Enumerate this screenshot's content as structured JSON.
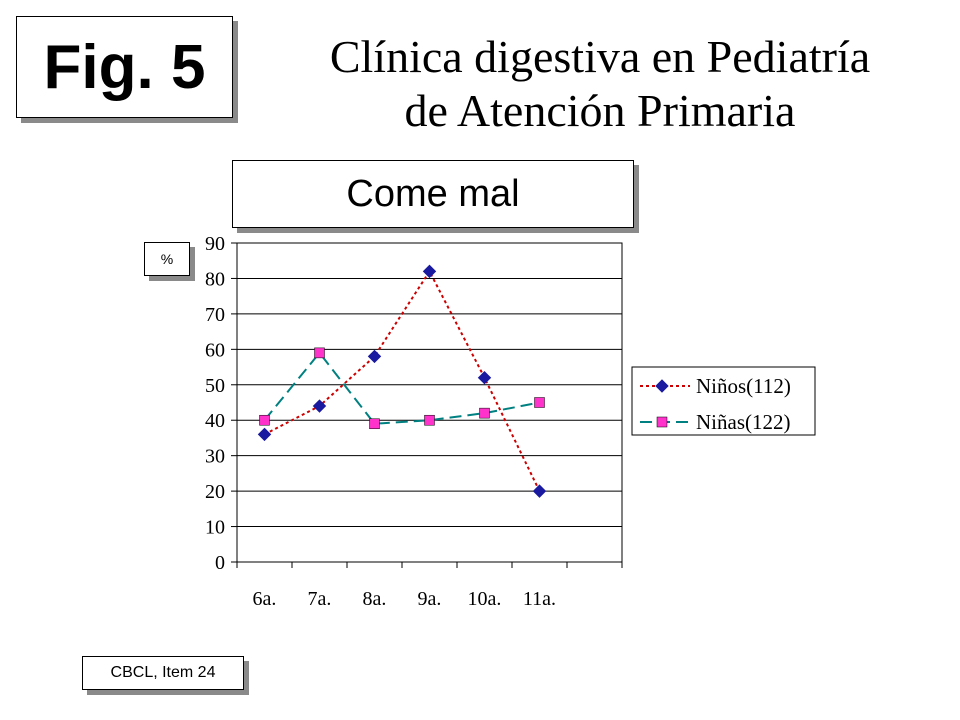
{
  "fig_label": "Fig. 5",
  "title_line1": "Clínica digestiva en Pediatría",
  "title_line2": "de Atención Primaria",
  "subtitle": "Come mal",
  "y_unit": "%",
  "source": "CBCL, Item 24",
  "chart_data": {
    "type": "line",
    "title": "Come mal",
    "ylabel": "%",
    "xlabel": "",
    "categories": [
      "6a.",
      "7a.",
      "8a.",
      "9a.",
      "10a.",
      "11a."
    ],
    "ylim": [
      0,
      90
    ],
    "yticks": [
      0,
      10,
      20,
      30,
      40,
      50,
      60,
      70,
      80,
      90
    ],
    "grid": true,
    "legend_position": "right",
    "series": [
      {
        "name": "Niños(112)",
        "values": [
          36,
          44,
          58,
          82,
          52,
          20
        ],
        "color": "#cc0000",
        "marker_color": "#1a1aa0",
        "marker": "diamond",
        "dash": "dotted"
      },
      {
        "name": "Niñas(122)",
        "values": [
          40,
          59,
          39,
          40,
          42,
          45
        ],
        "color": "#008080",
        "marker_color": "#ff33cc",
        "marker": "square",
        "dash": "dashed"
      }
    ]
  }
}
